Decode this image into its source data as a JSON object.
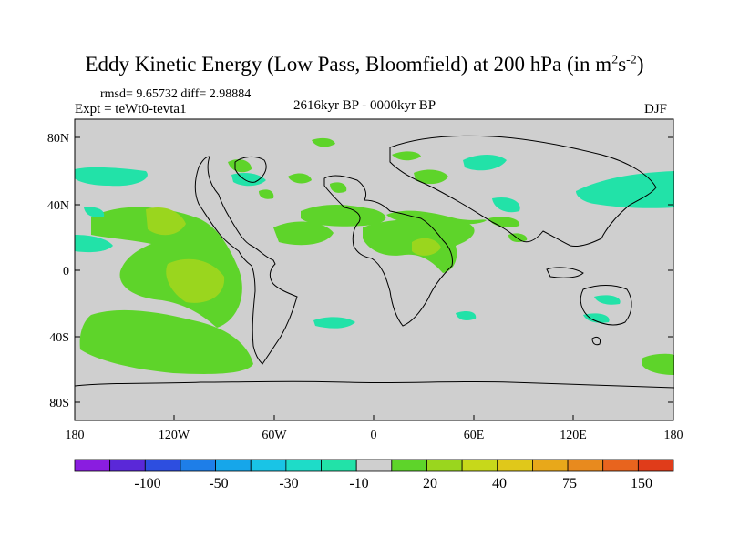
{
  "title": {
    "main": "Eddy Kinetic Energy (Low Pass, Bloomfield) at 200 hPa (in m",
    "sup1": "2",
    "mid": "s",
    "sup2": "-2",
    "end": ")"
  },
  "rmsd_line": "rmsd= 9.65732 diff= 2.98884",
  "expt_line": "Expt = teWt0-tevta1",
  "period": "2616kyr BP - 0000kyr BP",
  "season": "DJF",
  "lat_labels": [
    "80N",
    "40N",
    "0",
    "40S",
    "80S"
  ],
  "lon_labels": [
    "180",
    "120W",
    "60W",
    "0",
    "60E",
    "120E",
    "180"
  ],
  "colorbar": {
    "colors": [
      "#8a1de0",
      "#5a28d8",
      "#2d4ee0",
      "#1e7ee8",
      "#16a6ea",
      "#19c4e6",
      "#1edcc8",
      "#22e2a8",
      "#cfcfcf",
      "#5ed42a",
      "#9ad61e",
      "#c7d81a",
      "#e0c81a",
      "#e8a81a",
      "#e88a1e",
      "#e8641e",
      "#e03c1a"
    ],
    "labels": [
      "-100",
      "-50",
      "-30",
      "-10",
      "20",
      "40",
      "75",
      "150"
    ]
  },
  "fill_colors": {
    "ocean_bg": "#cfcfcf",
    "green": "#5ed42a",
    "yellow_green": "#9ad61e",
    "cyan": "#22e2a8"
  }
}
